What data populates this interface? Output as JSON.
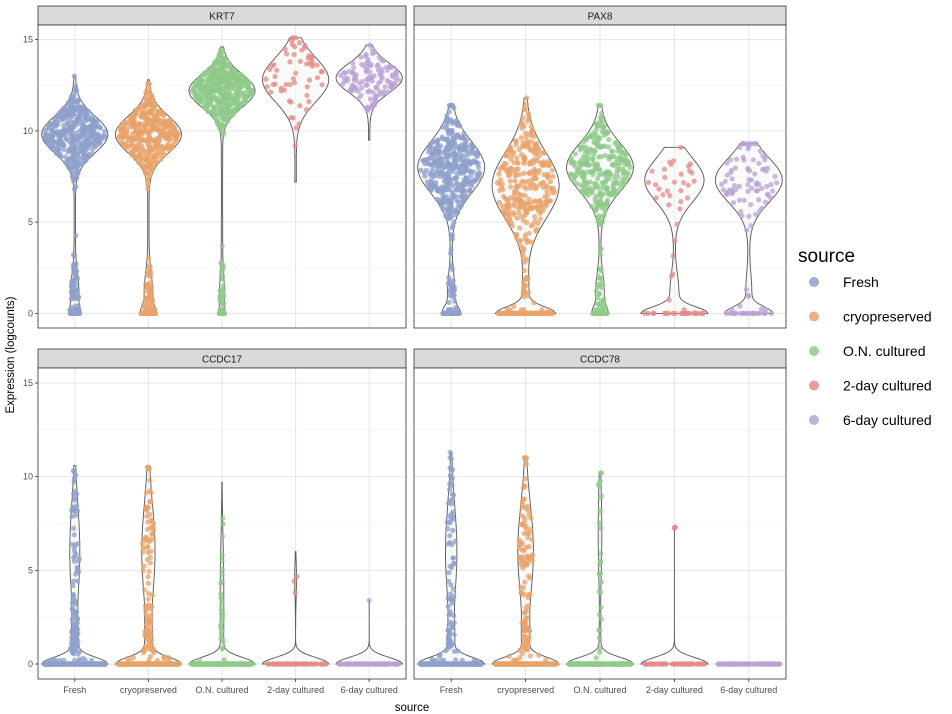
{
  "chart_data": {
    "type": "violin",
    "xlabel": "source",
    "ylabel": "Expression (logcounts)",
    "ylim": [
      -0.8,
      15.8
    ],
    "yticks": [
      0,
      5,
      10,
      15
    ],
    "categories": [
      "Fresh",
      "cryopreserved",
      "O.N. cultured",
      "2-day cultured",
      "6-day cultured"
    ],
    "legend": {
      "title": "source",
      "position": "right",
      "items": [
        {
          "label": "Fresh",
          "color": "#8DA0CB"
        },
        {
          "label": "cryopreserved",
          "color": "#E8A36A"
        },
        {
          "label": "O.N. cultured",
          "color": "#8FCA8A"
        },
        {
          "label": "2-day cultured",
          "color": "#E38B87"
        },
        {
          "label": "6-day cultured",
          "color": "#B9A2D6"
        }
      ]
    },
    "grid": true,
    "panels": [
      {
        "title": "KRT7",
        "series": [
          {
            "name": "Fresh",
            "max": 13.0,
            "mode": 9.8,
            "spread": 1.0,
            "zero_frac": 0.06,
            "low_frac": 0.1,
            "points": 900
          },
          {
            "name": "cryopreserved",
            "max": 12.8,
            "mode": 9.8,
            "spread": 1.0,
            "zero_frac": 0.1,
            "low_frac": 0.1,
            "points": 900
          },
          {
            "name": "O.N. cultured",
            "max": 14.6,
            "mode": 12.2,
            "spread": 0.9,
            "zero_frac": 0.03,
            "low_frac": 0.05,
            "points": 750
          },
          {
            "name": "2-day cultured",
            "max": 15.1,
            "mode": 12.8,
            "spread": 1.2,
            "zero_frac": 0.0,
            "low_frac": 0.0,
            "points": 60,
            "min": 7.2
          },
          {
            "name": "6-day cultured",
            "max": 14.7,
            "mode": 12.9,
            "spread": 0.8,
            "zero_frac": 0.0,
            "low_frac": 0.0,
            "points": 120,
            "min": 9.5
          }
        ]
      },
      {
        "title": "PAX8",
        "series": [
          {
            "name": "Fresh",
            "max": 11.4,
            "mode": 8.0,
            "spread": 1.4,
            "zero_frac": 0.12,
            "low_frac": 0.08,
            "points": 900
          },
          {
            "name": "cryopreserved",
            "max": 11.8,
            "mode": 7.0,
            "spread": 1.8,
            "zero_frac": 0.35,
            "low_frac": 0.05,
            "points": 700
          },
          {
            "name": "O.N. cultured",
            "max": 11.4,
            "mode": 8.0,
            "spread": 1.3,
            "zero_frac": 0.1,
            "low_frac": 0.1,
            "points": 350
          },
          {
            "name": "2-day cultured",
            "max": 9.1,
            "mode": 7.3,
            "spread": 1.2,
            "zero_frac": 0.4,
            "low_frac": 0.08,
            "points": 60
          },
          {
            "name": "6-day cultured",
            "max": 9.3,
            "mode": 7.3,
            "spread": 1.2,
            "zero_frac": 0.3,
            "low_frac": 0.05,
            "points": 110
          }
        ]
      },
      {
        "title": "CCDC17",
        "series": [
          {
            "name": "Fresh",
            "max": 10.6,
            "mode": 6.0,
            "spread": 2.5,
            "zero_frac": 0.8,
            "low_frac": 0.1,
            "points": 600
          },
          {
            "name": "cryopreserved",
            "max": 10.5,
            "mode": 6.0,
            "spread": 2.5,
            "zero_frac": 0.75,
            "low_frac": 0.1,
            "points": 600
          },
          {
            "name": "O.N. cultured",
            "max": 9.7,
            "mode": 4.0,
            "spread": 2.5,
            "zero_frac": 0.92,
            "low_frac": 0.03,
            "points": 400
          },
          {
            "name": "2-day cultured",
            "max": 6.0,
            "mode": 4.5,
            "spread": 1.0,
            "zero_frac": 0.96,
            "low_frac": 0.0,
            "points": 60
          },
          {
            "name": "6-day cultured",
            "max": 3.4,
            "mode": 3.4,
            "spread": 0.1,
            "zero_frac": 0.99,
            "low_frac": 0.0,
            "points": 110
          }
        ]
      },
      {
        "title": "CCDC78",
        "series": [
          {
            "name": "Fresh",
            "max": 11.3,
            "mode": 6.0,
            "spread": 2.5,
            "zero_frac": 0.78,
            "low_frac": 0.1,
            "points": 600
          },
          {
            "name": "cryopreserved",
            "max": 11.0,
            "mode": 6.0,
            "spread": 2.5,
            "zero_frac": 0.72,
            "low_frac": 0.1,
            "points": 600
          },
          {
            "name": "O.N. cultured",
            "max": 10.2,
            "mode": 7.0,
            "spread": 2.5,
            "zero_frac": 0.92,
            "low_frac": 0.03,
            "points": 400
          },
          {
            "name": "2-day cultured",
            "max": 7.3,
            "mode": 7.3,
            "spread": 0.1,
            "zero_frac": 0.98,
            "low_frac": 0.0,
            "points": 60
          },
          {
            "name": "6-day cultured",
            "max": 0.0,
            "mode": 0.0,
            "spread": 0.1,
            "zero_frac": 1.0,
            "low_frac": 0.0,
            "points": 110
          }
        ]
      }
    ]
  }
}
